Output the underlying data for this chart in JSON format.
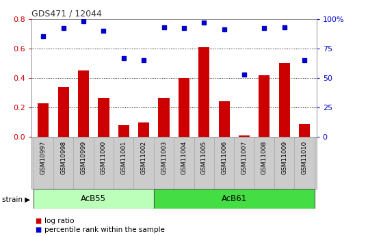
{
  "title": "GDS471 / 12044",
  "samples": [
    "GSM10997",
    "GSM10998",
    "GSM10999",
    "GSM11000",
    "GSM11001",
    "GSM11002",
    "GSM11003",
    "GSM11004",
    "GSM11005",
    "GSM11006",
    "GSM11007",
    "GSM11008",
    "GSM11009",
    "GSM11010"
  ],
  "log_ratio": [
    0.23,
    0.34,
    0.45,
    0.265,
    0.08,
    0.1,
    0.265,
    0.4,
    0.61,
    0.24,
    0.01,
    0.42,
    0.5,
    0.09
  ],
  "percentile_rank": [
    85,
    92,
    98,
    90,
    67,
    65,
    93,
    92,
    97,
    91,
    53,
    92,
    93,
    65
  ],
  "bar_color": "#cc0000",
  "dot_color": "#0000cc",
  "ylim_left": [
    0,
    0.8
  ],
  "ylim_right": [
    0,
    100
  ],
  "yticks_left": [
    0,
    0.2,
    0.4,
    0.6,
    0.8
  ],
  "yticks_right": [
    0,
    25,
    50,
    75,
    100
  ],
  "ytick_labels_right": [
    "0",
    "25",
    "50",
    "75",
    "100%"
  ],
  "groups": [
    {
      "label": "AcB55",
      "start": 0,
      "end": 6,
      "color": "#bbffbb"
    },
    {
      "label": "AcB61",
      "start": 6,
      "end": 14,
      "color": "#44dd44"
    }
  ],
  "strain_label": "strain",
  "legend_bar_label": "log ratio",
  "legend_dot_label": "percentile rank within the sample",
  "bg_color": "#cccccc",
  "plot_bg": "#ffffff",
  "left_tick_color": "#cc0000",
  "right_tick_color": "#0000cc",
  "figsize": [
    5.38,
    3.45
  ],
  "dpi": 100
}
